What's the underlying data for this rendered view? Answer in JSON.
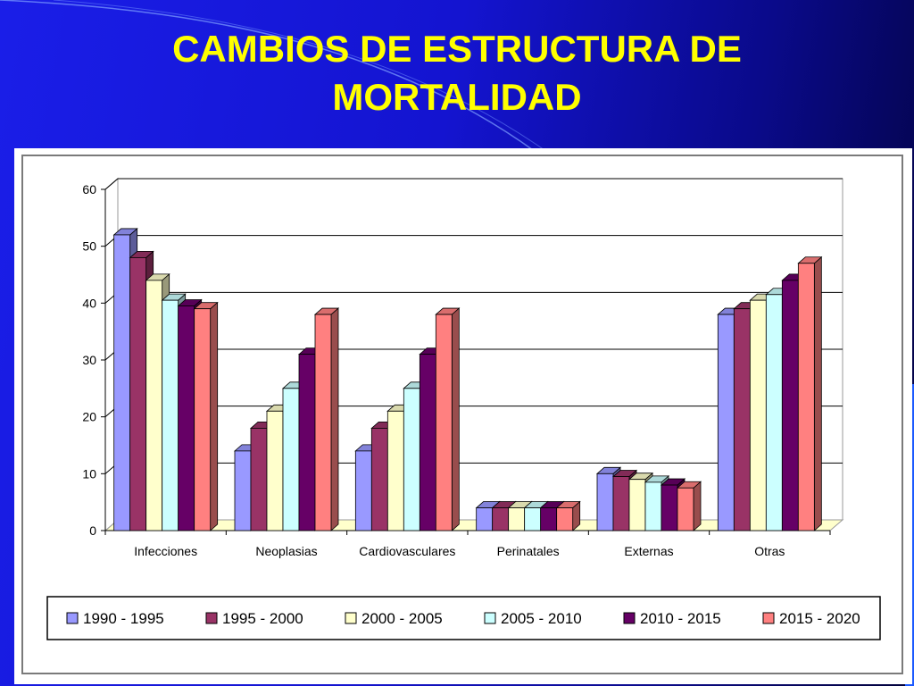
{
  "slide": {
    "title_line1": "CAMBIOS DE ESTRUCTURA DE",
    "title_line2": "MORTALIDAD"
  },
  "chart_data": {
    "type": "bar",
    "title": "",
    "xlabel": "",
    "ylabel": "",
    "ylim": [
      0,
      60
    ],
    "yticks": [
      0,
      10,
      20,
      30,
      40,
      50,
      60
    ],
    "grid": true,
    "legend_position": "bottom",
    "categories": [
      "Infecciones",
      "Neoplasias",
      "Cardiovasculares",
      "Perinatales",
      "Externas",
      "Otras"
    ],
    "series": [
      {
        "name": "1990 - 1995",
        "color": "#9999ff",
        "values": [
          52,
          14,
          14,
          4,
          10,
          38
        ]
      },
      {
        "name": "1995 - 2000",
        "color": "#993366",
        "values": [
          48,
          18,
          18,
          4,
          9.5,
          39
        ]
      },
      {
        "name": "2000 - 2005",
        "color": "#ffffcc",
        "values": [
          44,
          21,
          21,
          4,
          9,
          40.5
        ]
      },
      {
        "name": "2005 - 2010",
        "color": "#ccffff",
        "values": [
          40.5,
          25,
          25,
          4,
          8.5,
          41.5
        ]
      },
      {
        "name": "2010 - 2015",
        "color": "#660066",
        "values": [
          39.5,
          31,
          31,
          4,
          8,
          44
        ]
      },
      {
        "name": "2015 - 2020",
        "color": "#ff8080",
        "values": [
          39,
          38,
          38,
          4,
          7.5,
          47
        ]
      }
    ]
  }
}
